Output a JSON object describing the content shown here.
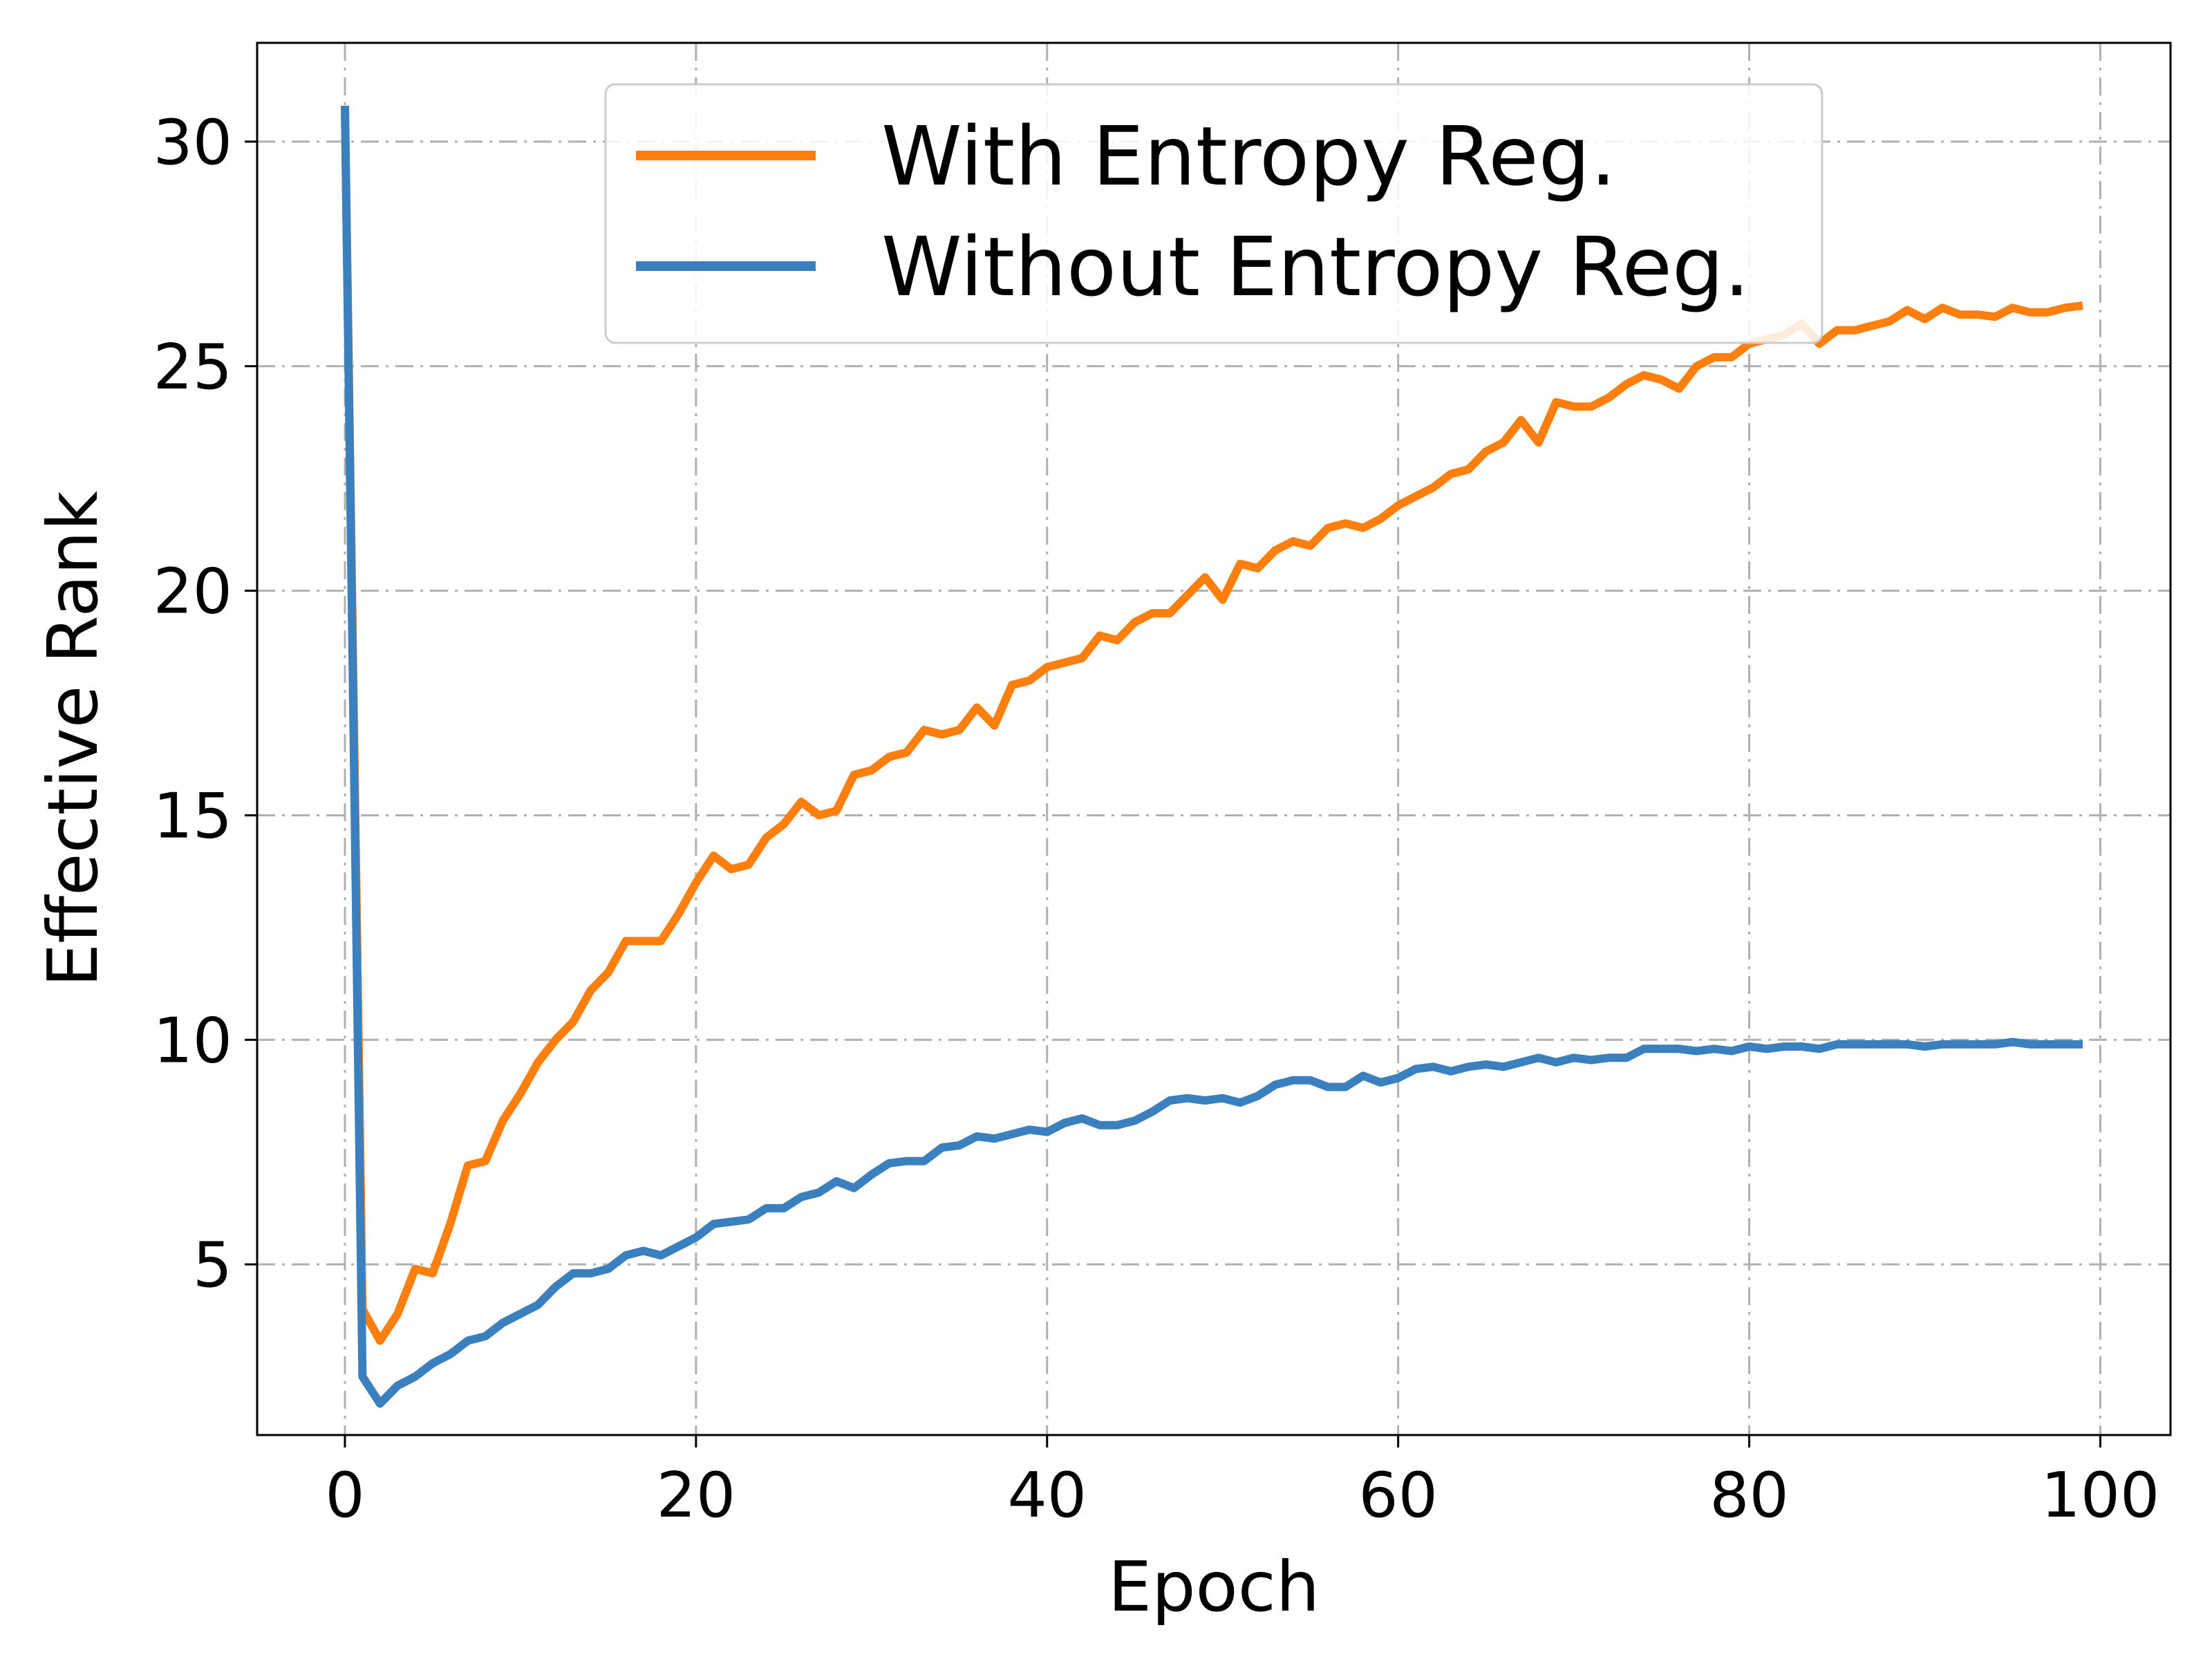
{
  "chart_data": {
    "type": "line",
    "title": "",
    "xlabel": "Epoch",
    "ylabel": "Effective Rank",
    "xlim": [
      -5,
      104
    ],
    "ylim": [
      1.2,
      32.2
    ],
    "xticks": [
      0,
      20,
      40,
      60,
      80,
      100
    ],
    "yticks": [
      5,
      10,
      15,
      20,
      25,
      30
    ],
    "grid": true,
    "legend_position": "top-center",
    "series": [
      {
        "name": "With Entropy Reg.",
        "color": "#ff7f0e",
        "x": [
          0,
          1,
          2,
          3,
          4,
          5,
          6,
          7,
          8,
          9,
          10,
          11,
          12,
          13,
          14,
          15,
          16,
          17,
          18,
          19,
          20,
          21,
          22,
          23,
          24,
          25,
          26,
          27,
          28,
          29,
          30,
          31,
          32,
          33,
          34,
          35,
          36,
          37,
          38,
          39,
          40,
          41,
          42,
          43,
          44,
          45,
          46,
          47,
          48,
          49,
          50,
          51,
          52,
          53,
          54,
          55,
          56,
          57,
          58,
          59,
          60,
          61,
          62,
          63,
          64,
          65,
          66,
          67,
          68,
          69,
          70,
          71,
          72,
          73,
          74,
          75,
          76,
          77,
          78,
          79,
          80,
          81,
          82,
          83,
          84,
          85,
          86,
          87,
          88,
          89,
          90,
          91,
          92,
          93,
          94,
          95,
          96,
          97,
          98,
          99
        ],
        "y": [
          30.8,
          4.0,
          3.3,
          3.9,
          4.9,
          4.8,
          5.9,
          7.2,
          7.3,
          8.2,
          8.8,
          9.5,
          10.0,
          10.4,
          11.1,
          11.5,
          12.2,
          12.2,
          12.2,
          12.8,
          13.5,
          14.1,
          13.8,
          13.9,
          14.5,
          14.8,
          15.3,
          15.0,
          15.1,
          15.9,
          16.0,
          16.3,
          16.4,
          16.9,
          16.8,
          16.9,
          17.4,
          17.0,
          17.9,
          18.0,
          18.3,
          18.4,
          18.5,
          19.0,
          18.9,
          19.3,
          19.5,
          19.5,
          19.9,
          20.3,
          19.8,
          20.6,
          20.5,
          20.9,
          21.1,
          21.0,
          21.4,
          21.5,
          21.4,
          21.6,
          21.9,
          22.1,
          22.3,
          22.6,
          22.7,
          23.1,
          23.3,
          23.8,
          23.3,
          24.2,
          24.1,
          24.1,
          24.3,
          24.6,
          24.8,
          24.7,
          24.5,
          25.0,
          25.2,
          25.2,
          25.5,
          25.6,
          25.7,
          25.95,
          25.5,
          25.8,
          25.8,
          25.9,
          26.0,
          26.25,
          26.05,
          26.3,
          26.15,
          26.15,
          26.1,
          26.3,
          26.2,
          26.2,
          26.3,
          26.35
        ]
      },
      {
        "name": "Without Entropy Reg.",
        "color": "#3a7fbe",
        "x": [
          0,
          1,
          2,
          3,
          4,
          5,
          6,
          7,
          8,
          9,
          10,
          11,
          12,
          13,
          14,
          15,
          16,
          17,
          18,
          19,
          20,
          21,
          22,
          23,
          24,
          25,
          26,
          27,
          28,
          29,
          30,
          31,
          32,
          33,
          34,
          35,
          36,
          37,
          38,
          39,
          40,
          41,
          42,
          43,
          44,
          45,
          46,
          47,
          48,
          49,
          50,
          51,
          52,
          53,
          54,
          55,
          56,
          57,
          58,
          59,
          60,
          61,
          62,
          63,
          64,
          65,
          66,
          67,
          68,
          69,
          70,
          71,
          72,
          73,
          74,
          75,
          76,
          77,
          78,
          79,
          80,
          81,
          82,
          83,
          84,
          85,
          86,
          87,
          88,
          89,
          90,
          91,
          92,
          93,
          94,
          95,
          96,
          97,
          98,
          99
        ],
        "y": [
          30.8,
          2.5,
          1.9,
          2.3,
          2.5,
          2.8,
          3.0,
          3.3,
          3.4,
          3.7,
          3.9,
          4.1,
          4.5,
          4.8,
          4.8,
          4.9,
          5.2,
          5.3,
          5.2,
          5.4,
          5.6,
          5.9,
          5.95,
          6.0,
          6.25,
          6.25,
          6.5,
          6.6,
          6.85,
          6.7,
          7.0,
          7.25,
          7.3,
          7.3,
          7.6,
          7.65,
          7.85,
          7.8,
          7.9,
          8.0,
          7.95,
          8.15,
          8.25,
          8.1,
          8.1,
          8.2,
          8.4,
          8.65,
          8.7,
          8.65,
          8.7,
          8.6,
          8.75,
          9.0,
          9.1,
          9.1,
          8.95,
          8.95,
          9.2,
          9.05,
          9.15,
          9.35,
          9.4,
          9.3,
          9.4,
          9.45,
          9.4,
          9.5,
          9.6,
          9.5,
          9.6,
          9.55,
          9.6,
          9.6,
          9.8,
          9.8,
          9.8,
          9.75,
          9.8,
          9.75,
          9.85,
          9.8,
          9.85,
          9.85,
          9.8,
          9.9,
          9.9,
          9.9,
          9.9,
          9.9,
          9.85,
          9.9,
          9.9,
          9.9,
          9.9,
          9.95,
          9.9,
          9.9,
          9.9,
          9.9
        ]
      }
    ]
  }
}
